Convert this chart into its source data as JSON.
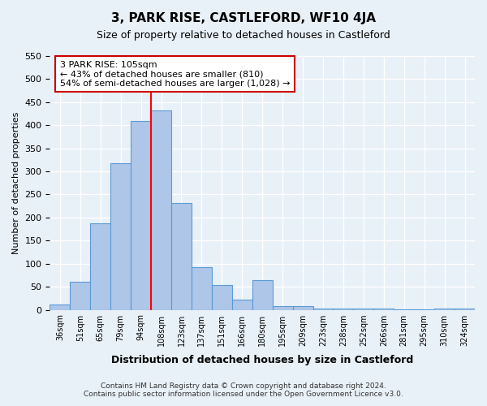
{
  "title": "3, PARK RISE, CASTLEFORD, WF10 4JA",
  "subtitle": "Size of property relative to detached houses in Castleford",
  "xlabel": "Distribution of detached houses by size in Castleford",
  "ylabel": "Number of detached properties",
  "bin_labels": [
    "36sqm",
    "51sqm",
    "65sqm",
    "79sqm",
    "94sqm",
    "108sqm",
    "123sqm",
    "137sqm",
    "151sqm",
    "166sqm",
    "180sqm",
    "195sqm",
    "209sqm",
    "223sqm",
    "238sqm",
    "252sqm",
    "266sqm",
    "281sqm",
    "295sqm",
    "310sqm",
    "324sqm"
  ],
  "bar_values": [
    12,
    60,
    187,
    317,
    410,
    432,
    232,
    93,
    53,
    22,
    65,
    8,
    8,
    3,
    3,
    2,
    2,
    1,
    1,
    2,
    2
  ],
  "bar_color": "#aec6e8",
  "bar_edge_color": "#5b9bd5",
  "red_line_x": 5,
  "annotation_text": "3 PARK RISE: 105sqm\n← 43% of detached houses are smaller (810)\n54% of semi-detached houses are larger (1,028) →",
  "annotation_box_color": "#ffffff",
  "annotation_box_edge_color": "#cc0000",
  "ylim": [
    0,
    550
  ],
  "yticks": [
    0,
    50,
    100,
    150,
    200,
    250,
    300,
    350,
    400,
    450,
    500,
    550
  ],
  "footer_line1": "Contains HM Land Registry data © Crown copyright and database right 2024.",
  "footer_line2": "Contains public sector information licensed under the Open Government Licence v3.0.",
  "bg_color": "#e8f0f8",
  "grid_color": "#ffffff"
}
